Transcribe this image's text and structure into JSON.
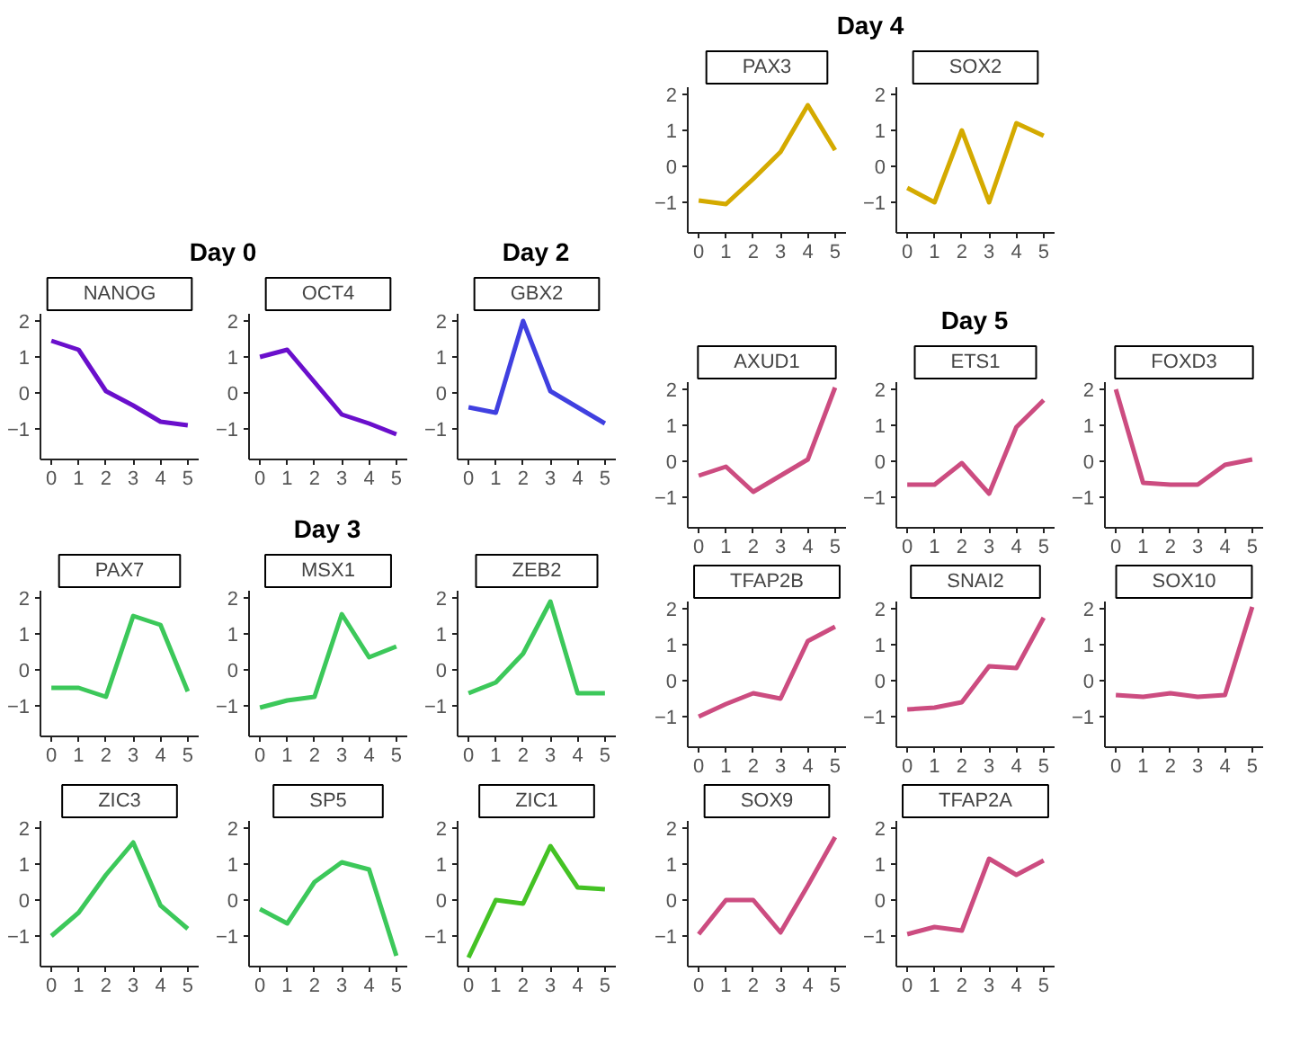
{
  "chart_data": [
    {
      "type": "line",
      "title": "NANOG",
      "annotations": [
        "Day 0"
      ],
      "x": [
        0,
        1,
        2,
        3,
        4,
        5
      ],
      "color": "#6a0fcc",
      "values": [
        1.45,
        1.2,
        0.05,
        -0.35,
        -0.8,
        -0.9
      ],
      "xlim": [
        -0.4,
        5.4
      ],
      "ylim": [
        -1.85,
        2.2
      ],
      "xticks": [
        0,
        1,
        2,
        3,
        4,
        5
      ],
      "yticks": [
        -1,
        0,
        1,
        2
      ]
    },
    {
      "type": "line",
      "title": "OCT4",
      "x": [
        0,
        1,
        2,
        3,
        4,
        5
      ],
      "color": "#6a0fcc",
      "values": [
        1.0,
        1.2,
        0.3,
        -0.6,
        -0.85,
        -1.15
      ],
      "xlim": [
        -0.4,
        5.4
      ],
      "ylim": [
        -1.85,
        2.2
      ],
      "xticks": [
        0,
        1,
        2,
        3,
        4,
        5
      ],
      "yticks": [
        -1,
        0,
        1,
        2
      ]
    },
    {
      "type": "line",
      "title": "GBX2",
      "annotations": [
        "Day 2"
      ],
      "x": [
        0,
        1,
        2,
        3,
        4,
        5
      ],
      "color": "#4040e0",
      "values": [
        -0.4,
        -0.55,
        2.0,
        0.05,
        -0.4,
        -0.85
      ],
      "xlim": [
        -0.4,
        5.4
      ],
      "ylim": [
        -1.85,
        2.2
      ],
      "xticks": [
        0,
        1,
        2,
        3,
        4,
        5
      ],
      "yticks": [
        -1,
        0,
        1,
        2
      ]
    },
    {
      "type": "line",
      "title": "PAX7",
      "annotations": [
        "Day 3"
      ],
      "x": [
        0,
        1,
        2,
        3,
        4,
        5
      ],
      "color": "#3cc85a",
      "values": [
        -0.5,
        -0.5,
        -0.75,
        1.5,
        1.25,
        -0.6
      ],
      "xlim": [
        -0.4,
        5.4
      ],
      "ylim": [
        -1.85,
        2.2
      ],
      "xticks": [
        0,
        1,
        2,
        3,
        4,
        5
      ],
      "yticks": [
        -1,
        0,
        1,
        2
      ]
    },
    {
      "type": "line",
      "title": "MSX1",
      "x": [
        0,
        1,
        2,
        3,
        4,
        5
      ],
      "color": "#3cc85a",
      "values": [
        -1.05,
        -0.85,
        -0.75,
        1.55,
        0.35,
        0.65
      ],
      "xlim": [
        -0.4,
        5.4
      ],
      "ylim": [
        -1.85,
        2.2
      ],
      "xticks": [
        0,
        1,
        2,
        3,
        4,
        5
      ],
      "yticks": [
        -1,
        0,
        1,
        2
      ]
    },
    {
      "type": "line",
      "title": "ZEB2",
      "x": [
        0,
        1,
        2,
        3,
        4,
        5
      ],
      "color": "#3cc85a",
      "values": [
        -0.65,
        -0.35,
        0.45,
        1.9,
        -0.65,
        -0.65
      ],
      "xlim": [
        -0.4,
        5.4
      ],
      "ylim": [
        -1.85,
        2.2
      ],
      "xticks": [
        0,
        1,
        2,
        3,
        4,
        5
      ],
      "yticks": [
        -1,
        0,
        1,
        2
      ]
    },
    {
      "type": "line",
      "title": "ZIC3",
      "x": [
        0,
        1,
        2,
        3,
        4,
        5
      ],
      "color": "#3cc85a",
      "values": [
        -1.0,
        -0.35,
        0.7,
        1.6,
        -0.15,
        -0.8
      ],
      "xlim": [
        -0.4,
        5.4
      ],
      "ylim": [
        -1.85,
        2.2
      ],
      "xticks": [
        0,
        1,
        2,
        3,
        4,
        5
      ],
      "yticks": [
        -1,
        0,
        1,
        2
      ]
    },
    {
      "type": "line",
      "title": "SP5",
      "x": [
        0,
        1,
        2,
        3,
        4,
        5
      ],
      "color": "#3cc85a",
      "values": [
        -0.25,
        -0.65,
        0.5,
        1.05,
        0.85,
        -1.55
      ],
      "xlim": [
        -0.4,
        5.4
      ],
      "ylim": [
        -1.85,
        2.2
      ],
      "xticks": [
        0,
        1,
        2,
        3,
        4,
        5
      ],
      "yticks": [
        -1,
        0,
        1,
        2
      ]
    },
    {
      "type": "line",
      "title": "ZIC1",
      "x": [
        0,
        1,
        2,
        3,
        4,
        5
      ],
      "color": "#44c224",
      "values": [
        -1.6,
        0.0,
        -0.1,
        1.5,
        0.35,
        0.3
      ],
      "xlim": [
        -0.4,
        5.4
      ],
      "ylim": [
        -1.85,
        2.2
      ],
      "xticks": [
        0,
        1,
        2,
        3,
        4,
        5
      ],
      "yticks": [
        -1,
        0,
        1,
        2
      ]
    },
    {
      "type": "line",
      "title": "PAX3",
      "annotations": [
        "Day 4"
      ],
      "x": [
        0,
        1,
        2,
        3,
        4,
        5
      ],
      "color": "#d4aa00",
      "values": [
        -0.95,
        -1.05,
        -0.35,
        0.4,
        1.7,
        0.45
      ],
      "xlim": [
        -0.4,
        5.4
      ],
      "ylim": [
        -1.85,
        2.2
      ],
      "xticks": [
        0,
        1,
        2,
        3,
        4,
        5
      ],
      "yticks": [
        -1,
        0,
        1,
        2
      ]
    },
    {
      "type": "line",
      "title": "SOX2",
      "x": [
        0,
        1,
        2,
        3,
        4,
        5
      ],
      "color": "#d4aa00",
      "values": [
        -0.6,
        -1.0,
        1.0,
        -1.0,
        1.2,
        0.85
      ],
      "xlim": [
        -0.4,
        5.4
      ],
      "ylim": [
        -1.85,
        2.2
      ],
      "xticks": [
        0,
        1,
        2,
        3,
        4,
        5
      ],
      "yticks": [
        -1,
        0,
        1,
        2
      ]
    },
    {
      "type": "line",
      "title": "AXUD1",
      "annotations": [
        "Day 5"
      ],
      "x": [
        0,
        1,
        2,
        3,
        4,
        5
      ],
      "color": "#cc4c80",
      "values": [
        -0.4,
        -0.15,
        -0.85,
        -0.4,
        0.05,
        2.05
      ],
      "xlim": [
        -0.4,
        5.4
      ],
      "ylim": [
        -1.85,
        2.2
      ],
      "xticks": [
        0,
        1,
        2,
        3,
        4,
        5
      ],
      "yticks": [
        -1,
        0,
        1,
        2
      ]
    },
    {
      "type": "line",
      "title": "ETS1",
      "x": [
        0,
        1,
        2,
        3,
        4,
        5
      ],
      "color": "#cc4c80",
      "values": [
        -0.65,
        -0.65,
        -0.05,
        -0.9,
        0.95,
        1.7
      ],
      "xlim": [
        -0.4,
        5.4
      ],
      "ylim": [
        -1.85,
        2.2
      ],
      "xticks": [
        0,
        1,
        2,
        3,
        4,
        5
      ],
      "yticks": [
        -1,
        0,
        1,
        2
      ]
    },
    {
      "type": "line",
      "title": "FOXD3",
      "x": [
        0,
        1,
        2,
        3,
        4,
        5
      ],
      "color": "#cc4c80",
      "values": [
        2.0,
        -0.6,
        -0.65,
        -0.65,
        -0.1,
        0.05
      ],
      "xlim": [
        -0.4,
        5.4
      ],
      "ylim": [
        -1.85,
        2.2
      ],
      "xticks": [
        0,
        1,
        2,
        3,
        4,
        5
      ],
      "yticks": [
        -1,
        0,
        1,
        2
      ]
    },
    {
      "type": "line",
      "title": "TFAP2B",
      "x": [
        0,
        1,
        2,
        3,
        4,
        5
      ],
      "color": "#cc4c80",
      "values": [
        -1.0,
        -0.65,
        -0.35,
        -0.5,
        1.1,
        1.5
      ],
      "xlim": [
        -0.4,
        5.4
      ],
      "ylim": [
        -1.85,
        2.2
      ],
      "xticks": [
        0,
        1,
        2,
        3,
        4,
        5
      ],
      "yticks": [
        -1,
        0,
        1,
        2
      ]
    },
    {
      "type": "line",
      "title": "SNAI2",
      "x": [
        0,
        1,
        2,
        3,
        4,
        5
      ],
      "color": "#cc4c80",
      "values": [
        -0.8,
        -0.75,
        -0.6,
        0.4,
        0.35,
        1.75
      ],
      "xlim": [
        -0.4,
        5.4
      ],
      "ylim": [
        -1.85,
        2.2
      ],
      "xticks": [
        0,
        1,
        2,
        3,
        4,
        5
      ],
      "yticks": [
        -1,
        0,
        1,
        2
      ]
    },
    {
      "type": "line",
      "title": "SOX10",
      "x": [
        0,
        1,
        2,
        3,
        4,
        5
      ],
      "color": "#cc4c80",
      "values": [
        -0.4,
        -0.45,
        -0.35,
        -0.45,
        -0.4,
        2.05
      ],
      "xlim": [
        -0.4,
        5.4
      ],
      "ylim": [
        -1.85,
        2.2
      ],
      "xticks": [
        0,
        1,
        2,
        3,
        4,
        5
      ],
      "yticks": [
        -1,
        0,
        1,
        2
      ]
    },
    {
      "type": "line",
      "title": "SOX9",
      "x": [
        0,
        1,
        2,
        3,
        4,
        5
      ],
      "color": "#cc4c80",
      "values": [
        -0.95,
        0.0,
        0.0,
        -0.9,
        0.4,
        1.75
      ],
      "xlim": [
        -0.4,
        5.4
      ],
      "ylim": [
        -1.85,
        2.2
      ],
      "xticks": [
        0,
        1,
        2,
        3,
        4,
        5
      ],
      "yticks": [
        -1,
        0,
        1,
        2
      ]
    },
    {
      "type": "line",
      "title": "TFAP2A",
      "x": [
        0,
        1,
        2,
        3,
        4,
        5
      ],
      "color": "#cc4c80",
      "values": [
        -0.95,
        -0.75,
        -0.85,
        1.15,
        0.7,
        1.1
      ],
      "xlim": [
        -0.4,
        5.4
      ],
      "ylim": [
        -1.85,
        2.2
      ],
      "xticks": [
        0,
        1,
        2,
        3,
        4,
        5
      ],
      "yticks": [
        -1,
        0,
        1,
        2
      ]
    }
  ]
}
